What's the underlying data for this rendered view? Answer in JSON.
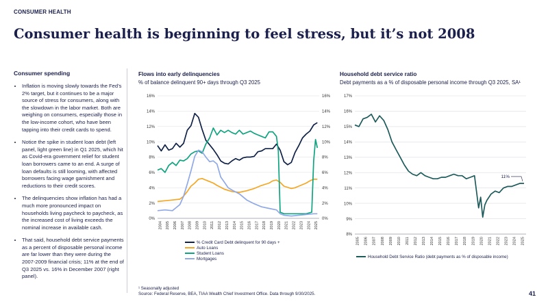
{
  "header": {
    "kicker": "CONSUMER HEALTH",
    "title": "Consumer health is beginning to feel stress, but it’s not 2008"
  },
  "left_panel": {
    "heading": "Consumer spending",
    "bullets": [
      "Inflation is moving slowly towards the Fed’s 2% target, but it continues to be a major source of stress for consumers, along with the slowdown in the labor market. Both are weighing on consumers, especially those in the low-income cohort, who have been tapping into their credit cards to spend.",
      "Notice the spike in student loan debt (left panel, light green line) in Q1 2025, which hit as Covid-era government relief for student loan borrowers came to an end. A surge of loan defaults is still looming, with affected borrowers facing wage garnishment and reductions to their credit scores.",
      "The delinquencies show inflation has had a much more pronounced impact on households living paycheck to paycheck, as the increased cost of living exceeds the nominal increase in available cash.",
      "That said, household debt service payments as a percent of disposable personal income are far lower than they were during the 2007-2009 financial crisis; 11% at the end of Q3 2025 vs. 16% in December 2007 (right panel)."
    ]
  },
  "chart_data": [
    {
      "type": "line",
      "title": "Flows into early delinquencies",
      "subtitle": "% of balance delinquent 90+ days through Q3 2025",
      "xlabel": "",
      "ylabel": "",
      "xlim": [
        2004,
        2025.75
      ],
      "ylim": [
        0,
        16
      ],
      "y_ticks": [
        0,
        2,
        4,
        6,
        8,
        10,
        12,
        14,
        16
      ],
      "y_tick_labels": [
        "0%",
        "2%",
        "4%",
        "6%",
        "8%",
        "10%",
        "12%",
        "14%",
        "16%"
      ],
      "x_ticks": [
        2004,
        2005,
        2006,
        2007,
        2008,
        2009,
        2010,
        2011,
        2012,
        2013,
        2014,
        2015,
        2016,
        2017,
        2018,
        2019,
        2020,
        2021,
        2022,
        2023,
        2024,
        2025
      ],
      "x_tick_labels": [
        "2004",
        "2005",
        "2006",
        "2007",
        "2008",
        "2009",
        "2010",
        "2011",
        "2012",
        "2013",
        "2014",
        "2015",
        "2016",
        "2017",
        "2018",
        "2019",
        "2020",
        "2021",
        "2022",
        "2023",
        "2024",
        "2025"
      ],
      "dual_axis": true,
      "grid": true,
      "legend_position": "bottom",
      "series": [
        {
          "name": "% Credit Card Debt delinquent for 90 days +",
          "color": "#0f2146",
          "x": [
            2004,
            2004.5,
            2005,
            2005.5,
            2006,
            2006.5,
            2007,
            2007.5,
            2008,
            2008.5,
            2009,
            2009.5,
            2010,
            2010.5,
            2011,
            2011.5,
            2012,
            2012.5,
            2013,
            2013.5,
            2014,
            2014.5,
            2015,
            2015.5,
            2016,
            2016.5,
            2017,
            2017.5,
            2018,
            2018.5,
            2019,
            2019.5,
            2020,
            2020.5,
            2021,
            2021.5,
            2022,
            2022.5,
            2023,
            2023.5,
            2024,
            2024.5,
            2025,
            2025.5
          ],
          "values": [
            9.5,
            8.8,
            9.6,
            8.9,
            9.1,
            9.8,
            9.3,
            9.8,
            11.5,
            12.1,
            13.7,
            13.2,
            11.6,
            10.2,
            9.6,
            9.0,
            8.3,
            7.5,
            7.2,
            7.1,
            7.5,
            7.8,
            7.6,
            7.9,
            8.0,
            8.0,
            8.1,
            8.7,
            8.8,
            9.1,
            9.1,
            9.1,
            9.7,
            8.9,
            7.4,
            7.0,
            7.3,
            8.6,
            9.5,
            10.5,
            11.0,
            11.4,
            12.2,
            12.5
          ]
        },
        {
          "name": "Auto Loans",
          "color": "#f5a623",
          "x": [
            2004,
            2005,
            2006,
            2007,
            2007.5,
            2008,
            2008.5,
            2009,
            2009.5,
            2010,
            2010.5,
            2011,
            2011.5,
            2012,
            2013,
            2014,
            2015,
            2016,
            2017,
            2018,
            2019,
            2019.5,
            2020,
            2020.5,
            2021,
            2022,
            2022.5,
            2023,
            2024,
            2024.5,
            2025,
            2025.5
          ],
          "values": [
            2.2,
            2.3,
            2.4,
            2.5,
            2.9,
            3.5,
            4.2,
            4.6,
            5.1,
            5.2,
            5.0,
            4.8,
            4.6,
            4.3,
            3.8,
            3.5,
            3.4,
            3.6,
            3.9,
            4.3,
            4.6,
            4.9,
            5.0,
            4.7,
            4.2,
            3.9,
            4.0,
            4.2,
            4.6,
            4.9,
            5.1,
            5.1
          ]
        },
        {
          "name": "Student Loans",
          "color": "#0fa37f",
          "x": [
            2004,
            2004.5,
            2005,
            2005.5,
            2006,
            2006.5,
            2007,
            2007.5,
            2008,
            2008.5,
            2009,
            2009.5,
            2010,
            2010.5,
            2011,
            2011.5,
            2012,
            2012.5,
            2013,
            2013.5,
            2014,
            2014.5,
            2015,
            2015.5,
            2016,
            2016.5,
            2017,
            2017.5,
            2018,
            2018.5,
            2019,
            2019.5,
            2020,
            2020.25,
            2020.5,
            2021,
            2022,
            2023,
            2024,
            2024.75,
            2025,
            2025.25,
            2025.5
          ],
          "values": [
            6.3,
            6.5,
            6.0,
            6.9,
            7.3,
            6.9,
            7.6,
            7.5,
            7.8,
            8.4,
            8.7,
            8.8,
            8.5,
            9.7,
            10.5,
            11.8,
            10.9,
            11.5,
            11.2,
            11.5,
            11.2,
            11.0,
            11.5,
            11.0,
            11.2,
            11.4,
            11.1,
            10.9,
            10.7,
            10.5,
            11.3,
            11.3,
            10.7,
            8.8,
            0.8,
            0.6,
            0.6,
            0.6,
            0.6,
            0.8,
            7.5,
            10.3,
            9.2
          ]
        },
        {
          "name": "Mortgages",
          "color": "#8fa8e6",
          "x": [
            2004,
            2005,
            2006,
            2007,
            2007.5,
            2008,
            2008.5,
            2009,
            2009.5,
            2010,
            2010.5,
            2011,
            2011.5,
            2012,
            2012.5,
            2013,
            2013.5,
            2014,
            2015,
            2016,
            2017,
            2018,
            2019,
            2020,
            2020.5,
            2021,
            2022,
            2023,
            2024,
            2025,
            2025.5
          ],
          "values": [
            1.0,
            1.1,
            1.0,
            1.8,
            2.9,
            4.5,
            6.2,
            8.1,
            8.9,
            8.7,
            8.0,
            7.4,
            7.5,
            7.1,
            5.4,
            4.7,
            4.0,
            3.7,
            3.2,
            2.4,
            1.9,
            1.5,
            1.3,
            1.1,
            0.6,
            0.4,
            0.3,
            0.4,
            0.5,
            0.6,
            0.6
          ]
        }
      ]
    },
    {
      "type": "line",
      "title": "Household debt service ratio",
      "subtitle": "Debt payments as a % of disposable personal income through Q3 2025, SA¹",
      "xlabel": "",
      "ylabel": "",
      "xlim": [
        2005,
        2025.75
      ],
      "ylim": [
        8,
        17
      ],
      "y_ticks": [
        8,
        9,
        10,
        11,
        12,
        13,
        14,
        15,
        16,
        17
      ],
      "y_tick_labels": [
        "8%",
        "9%",
        "10%",
        "11%",
        "12%",
        "13%",
        "14%",
        "15%",
        "16%",
        "17%"
      ],
      "x_ticks": [
        2005,
        2006,
        2007,
        2008,
        2009,
        2010,
        2011,
        2012,
        2013,
        2014,
        2015,
        2016,
        2017,
        2018,
        2019,
        2020,
        2021,
        2022,
        2023,
        2024,
        2025
      ],
      "x_tick_labels": [
        "2005",
        "2006",
        "2007",
        "2008",
        "2009",
        "2010",
        "2011",
        "2012",
        "2013",
        "2014",
        "2015",
        "2016",
        "2017",
        "2018",
        "2019",
        "2020",
        "2021",
        "2022",
        "2023",
        "2024",
        "2025"
      ],
      "grid": true,
      "legend_position": "bottom",
      "annotation": "11%",
      "series": [
        {
          "name": "Household Debt Service Ratio (debt payments as % of disposable income)",
          "color": "#1d5a5a",
          "x": [
            2005,
            2005.5,
            2006,
            2006.5,
            2007,
            2007.5,
            2008,
            2008.5,
            2009,
            2009.5,
            2010,
            2010.5,
            2011,
            2011.5,
            2012,
            2012.5,
            2013,
            2013.5,
            2014,
            2014.5,
            2015,
            2015.5,
            2016,
            2016.5,
            2017,
            2017.5,
            2018,
            2018.5,
            2019,
            2019.5,
            2020,
            2020.25,
            2020.5,
            2020.75,
            2021,
            2021.5,
            2022,
            2022.5,
            2023,
            2023.5,
            2024,
            2024.5,
            2025,
            2025.5
          ],
          "values": [
            15.1,
            15.0,
            15.5,
            15.6,
            15.8,
            15.3,
            15.7,
            15.4,
            14.8,
            14.0,
            13.5,
            13.0,
            12.5,
            12.1,
            11.9,
            11.8,
            12.0,
            11.8,
            11.7,
            11.6,
            11.6,
            11.7,
            11.7,
            11.8,
            11.9,
            11.8,
            11.8,
            11.6,
            11.7,
            11.8,
            9.7,
            10.4,
            9.1,
            9.9,
            10.2,
            10.6,
            10.8,
            10.7,
            11.0,
            11.1,
            11.1,
            11.2,
            11.3,
            11.3
          ]
        }
      ]
    }
  ],
  "footnote": {
    "line1": "¹ Seasonally adjusted",
    "line2": "Source: Federal Reserve, BEA, TIAA Wealth Chief Investment Office. Data through 9/30/2025."
  },
  "page_number": "41"
}
